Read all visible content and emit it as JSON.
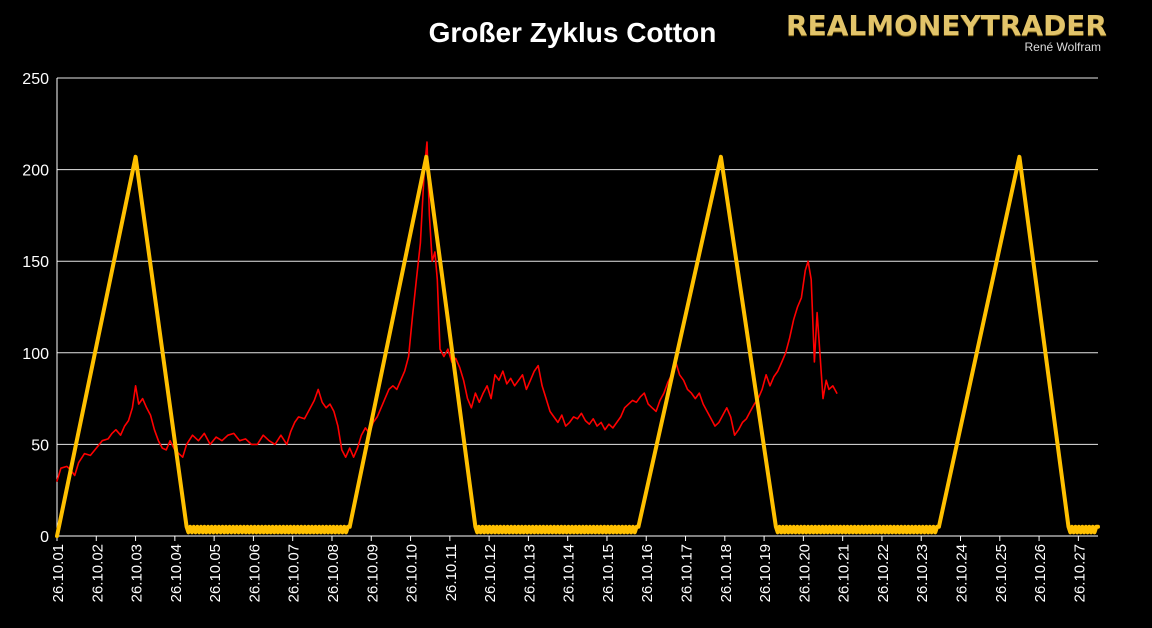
{
  "header": {
    "title": "Großer Zyklus Cotton",
    "brand_name": "REALMONEYTRADER",
    "brand_sub": "René Wolfram"
  },
  "colors": {
    "background": "#000000",
    "price_line": "#ff0000",
    "cycle_line": "#ffc000",
    "grid": "#ffffff",
    "text": "#ffffff",
    "brand_gold": "#e2c46a"
  },
  "chart_data": {
    "type": "line",
    "title": "Großer Zyklus Cotton",
    "xlabel": "",
    "ylabel": "",
    "ylim": [
      0,
      250
    ],
    "yticks": [
      0,
      50,
      100,
      150,
      200,
      250
    ],
    "grid": true,
    "legend": "none",
    "xlim": [
      2001,
      2027.5
    ],
    "x_tick_labels": [
      {
        "x": 2001,
        "label": "26.10.01"
      },
      {
        "x": 2002,
        "label": "26.10.02"
      },
      {
        "x": 2003,
        "label": "26.10.03"
      },
      {
        "x": 2004,
        "label": "26.10.04"
      },
      {
        "x": 2005,
        "label": "26.10.05"
      },
      {
        "x": 2006,
        "label": "26.10.06"
      },
      {
        "x": 2007,
        "label": "26.10.07"
      },
      {
        "x": 2008,
        "label": "26.10.08"
      },
      {
        "x": 2009,
        "label": "26.10.09"
      },
      {
        "x": 2010,
        "label": "26.10.10"
      },
      {
        "x": 2011,
        "label": "26.10.11"
      },
      {
        "x": 2012,
        "label": "26.10.12"
      },
      {
        "x": 2013,
        "label": "26.10.13"
      },
      {
        "x": 2014,
        "label": "26.10.14"
      },
      {
        "x": 2015,
        "label": "26.10.15"
      },
      {
        "x": 2016,
        "label": "26.10.16"
      },
      {
        "x": 2017,
        "label": "26.10.17"
      },
      {
        "x": 2018,
        "label": "26.10.18"
      },
      {
        "x": 2019,
        "label": "26.10.19"
      },
      {
        "x": 2020,
        "label": "26.10.20"
      },
      {
        "x": 2021,
        "label": "26.10.21"
      },
      {
        "x": 2022,
        "label": "26.10.22"
      },
      {
        "x": 2023,
        "label": "26.10.23"
      },
      {
        "x": 2024,
        "label": "26.10.24"
      },
      {
        "x": 2025,
        "label": "26.10.25"
      },
      {
        "x": 2026,
        "label": "26.10.26"
      },
      {
        "x": 2027,
        "label": "26.10.27"
      }
    ],
    "series": [
      {
        "key": "price",
        "color": "#ff0000",
        "points": [
          [
            2001.0,
            30
          ],
          [
            2001.1,
            37
          ],
          [
            2001.25,
            38
          ],
          [
            2001.35,
            36
          ],
          [
            2001.45,
            33
          ],
          [
            2001.55,
            40
          ],
          [
            2001.7,
            45
          ],
          [
            2001.85,
            44
          ],
          [
            2002.0,
            48
          ],
          [
            2002.15,
            52
          ],
          [
            2002.3,
            53
          ],
          [
            2002.4,
            56
          ],
          [
            2002.5,
            58
          ],
          [
            2002.62,
            55
          ],
          [
            2002.72,
            60
          ],
          [
            2002.82,
            63
          ],
          [
            2002.92,
            70
          ],
          [
            2003.0,
            82
          ],
          [
            2003.08,
            72
          ],
          [
            2003.18,
            75
          ],
          [
            2003.28,
            70
          ],
          [
            2003.38,
            66
          ],
          [
            2003.48,
            58
          ],
          [
            2003.58,
            52
          ],
          [
            2003.68,
            48
          ],
          [
            2003.78,
            47
          ],
          [
            2003.88,
            52
          ],
          [
            2004.0,
            47
          ],
          [
            2004.1,
            45
          ],
          [
            2004.2,
            43
          ],
          [
            2004.3,
            50
          ],
          [
            2004.45,
            55
          ],
          [
            2004.6,
            52
          ],
          [
            2004.75,
            56
          ],
          [
            2004.9,
            50
          ],
          [
            2005.05,
            54
          ],
          [
            2005.2,
            52
          ],
          [
            2005.35,
            55
          ],
          [
            2005.5,
            56
          ],
          [
            2005.65,
            52
          ],
          [
            2005.8,
            53
          ],
          [
            2005.95,
            50
          ],
          [
            2006.1,
            50
          ],
          [
            2006.25,
            55
          ],
          [
            2006.4,
            52
          ],
          [
            2006.55,
            50
          ],
          [
            2006.7,
            55
          ],
          [
            2006.85,
            50
          ],
          [
            2006.95,
            57
          ],
          [
            2007.05,
            62
          ],
          [
            2007.15,
            65
          ],
          [
            2007.3,
            64
          ],
          [
            2007.45,
            70
          ],
          [
            2007.55,
            74
          ],
          [
            2007.65,
            80
          ],
          [
            2007.75,
            73
          ],
          [
            2007.85,
            70
          ],
          [
            2007.95,
            72
          ],
          [
            2008.05,
            68
          ],
          [
            2008.15,
            60
          ],
          [
            2008.25,
            47
          ],
          [
            2008.35,
            43
          ],
          [
            2008.45,
            48
          ],
          [
            2008.55,
            43
          ],
          [
            2008.65,
            48
          ],
          [
            2008.75,
            55
          ],
          [
            2008.85,
            59
          ],
          [
            2008.95,
            56
          ],
          [
            2009.05,
            62
          ],
          [
            2009.15,
            65
          ],
          [
            2009.25,
            70
          ],
          [
            2009.35,
            75
          ],
          [
            2009.45,
            80
          ],
          [
            2009.55,
            82
          ],
          [
            2009.65,
            80
          ],
          [
            2009.75,
            85
          ],
          [
            2009.85,
            90
          ],
          [
            2009.95,
            98
          ],
          [
            2010.05,
            120
          ],
          [
            2010.15,
            140
          ],
          [
            2010.25,
            160
          ],
          [
            2010.35,
            200
          ],
          [
            2010.42,
            215
          ],
          [
            2010.48,
            175
          ],
          [
            2010.55,
            150
          ],
          [
            2010.62,
            155
          ],
          [
            2010.68,
            140
          ],
          [
            2010.75,
            102
          ],
          [
            2010.85,
            98
          ],
          [
            2010.95,
            102
          ],
          [
            2011.05,
            95
          ],
          [
            2011.15,
            97
          ],
          [
            2011.25,
            92
          ],
          [
            2011.35,
            85
          ],
          [
            2011.45,
            75
          ],
          [
            2011.55,
            70
          ],
          [
            2011.65,
            78
          ],
          [
            2011.75,
            73
          ],
          [
            2011.85,
            78
          ],
          [
            2011.95,
            82
          ],
          [
            2012.05,
            75
          ],
          [
            2012.15,
            88
          ],
          [
            2012.25,
            85
          ],
          [
            2012.35,
            90
          ],
          [
            2012.45,
            83
          ],
          [
            2012.55,
            86
          ],
          [
            2012.65,
            82
          ],
          [
            2012.75,
            85
          ],
          [
            2012.85,
            88
          ],
          [
            2012.95,
            80
          ],
          [
            2013.05,
            85
          ],
          [
            2013.15,
            90
          ],
          [
            2013.25,
            93
          ],
          [
            2013.35,
            82
          ],
          [
            2013.45,
            75
          ],
          [
            2013.55,
            68
          ],
          [
            2013.65,
            65
          ],
          [
            2013.75,
            62
          ],
          [
            2013.85,
            66
          ],
          [
            2013.95,
            60
          ],
          [
            2014.05,
            62
          ],
          [
            2014.15,
            65
          ],
          [
            2014.25,
            64
          ],
          [
            2014.35,
            67
          ],
          [
            2014.45,
            63
          ],
          [
            2014.55,
            61
          ],
          [
            2014.65,
            64
          ],
          [
            2014.75,
            60
          ],
          [
            2014.85,
            62
          ],
          [
            2014.95,
            58
          ],
          [
            2015.05,
            61
          ],
          [
            2015.15,
            59
          ],
          [
            2015.25,
            62
          ],
          [
            2015.35,
            65
          ],
          [
            2015.45,
            70
          ],
          [
            2015.55,
            72
          ],
          [
            2015.65,
            74
          ],
          [
            2015.75,
            73
          ],
          [
            2015.85,
            76
          ],
          [
            2015.95,
            78
          ],
          [
            2016.05,
            72
          ],
          [
            2016.15,
            70
          ],
          [
            2016.25,
            68
          ],
          [
            2016.35,
            74
          ],
          [
            2016.45,
            78
          ],
          [
            2016.55,
            84
          ],
          [
            2016.65,
            88
          ],
          [
            2016.75,
            95
          ],
          [
            2016.85,
            88
          ],
          [
            2016.95,
            85
          ],
          [
            2017.05,
            80
          ],
          [
            2017.15,
            78
          ],
          [
            2017.25,
            75
          ],
          [
            2017.35,
            78
          ],
          [
            2017.45,
            72
          ],
          [
            2017.55,
            68
          ],
          [
            2017.65,
            64
          ],
          [
            2017.75,
            60
          ],
          [
            2017.85,
            62
          ],
          [
            2017.95,
            66
          ],
          [
            2018.05,
            70
          ],
          [
            2018.15,
            65
          ],
          [
            2018.25,
            55
          ],
          [
            2018.35,
            58
          ],
          [
            2018.45,
            62
          ],
          [
            2018.55,
            64
          ],
          [
            2018.65,
            68
          ],
          [
            2018.75,
            72
          ],
          [
            2018.85,
            75
          ],
          [
            2018.95,
            80
          ],
          [
            2019.05,
            88
          ],
          [
            2019.15,
            82
          ],
          [
            2019.25,
            87
          ],
          [
            2019.35,
            90
          ],
          [
            2019.45,
            95
          ],
          [
            2019.55,
            100
          ],
          [
            2019.65,
            108
          ],
          [
            2019.75,
            118
          ],
          [
            2019.85,
            125
          ],
          [
            2019.95,
            130
          ],
          [
            2020.05,
            145
          ],
          [
            2020.12,
            150
          ],
          [
            2020.2,
            140
          ],
          [
            2020.28,
            95
          ],
          [
            2020.35,
            122
          ],
          [
            2020.42,
            100
          ],
          [
            2020.5,
            75
          ],
          [
            2020.58,
            85
          ],
          [
            2020.65,
            80
          ],
          [
            2020.75,
            82
          ],
          [
            2020.85,
            78
          ]
        ]
      },
      {
        "key": "cycle",
        "color": "#ffc000",
        "points": [
          [
            2001.0,
            0
          ],
          [
            2003.0,
            207
          ],
          [
            2004.3,
            5
          ],
          [
            2008.45,
            5
          ],
          [
            2010.4,
            207
          ],
          [
            2011.65,
            5
          ],
          [
            2015.8,
            5
          ],
          [
            2017.9,
            207
          ],
          [
            2019.3,
            5
          ],
          [
            2023.45,
            5
          ],
          [
            2025.5,
            207
          ],
          [
            2026.75,
            5
          ],
          [
            2027.5,
            5
          ]
        ]
      }
    ]
  }
}
